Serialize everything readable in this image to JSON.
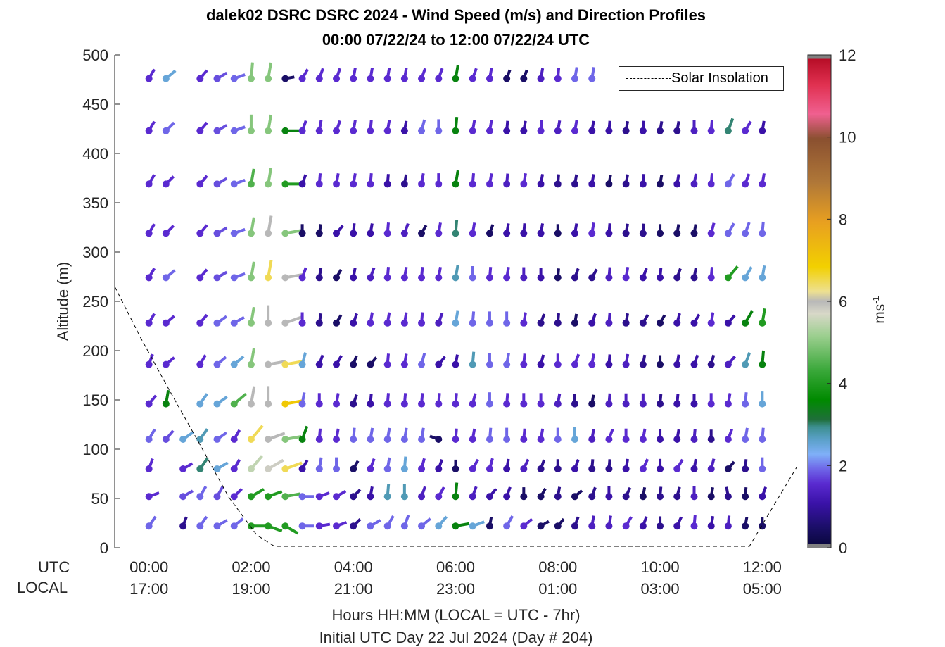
{
  "title_line1": "dalek02 DSRC DSRC 2024 - Wind Speed (m/s) and Direction Profiles",
  "title_line2": "00:00 07/22/24 to 12:00 07/22/24  UTC",
  "ylabel": "Altitude (m)",
  "xlabel": "Hours HH:MM  (LOCAL = UTC - 7hr)",
  "xlabel2": "Initial UTC Day 22  Jul 2024  (Day # 204)",
  "utc_label": "UTC",
  "local_label": "LOCAL",
  "colorbar": {
    "label_base": "ms",
    "label_exp": "-1",
    "ticks": [
      "0",
      "2",
      "4",
      "6",
      "8",
      "10",
      "12"
    ],
    "range": [
      0,
      12
    ]
  },
  "legend": {
    "entry": "Solar Insolation"
  },
  "chart_data": {
    "type": "wind-barb",
    "title": "dalek02 DSRC DSRC 2024 - Wind Speed (m/s) and Direction Profiles",
    "x_ticks_utc": [
      "00:00",
      "02:00",
      "04:00",
      "06:00",
      "08:00",
      "10:00",
      "12:00"
    ],
    "x_ticks_local": [
      "17:00",
      "19:00",
      "21:00",
      "23:00",
      "01:00",
      "03:00",
      "05:00"
    ],
    "xlim_hours": [
      -0.67,
      12.67
    ],
    "ylim": [
      0,
      500
    ],
    "y_ticks": [
      0,
      50,
      100,
      150,
      200,
      250,
      300,
      350,
      400,
      450,
      500
    ],
    "times_hours": [
      0,
      0.333,
      0.667,
      1,
      1.333,
      1.667,
      2,
      2.333,
      2.667,
      3,
      3.333,
      3.667,
      4,
      4.333,
      4.667,
      5,
      5.333,
      5.667,
      6,
      6.333,
      6.667,
      7,
      7.333,
      7.667,
      8,
      8.333,
      8.667,
      9,
      9.333,
      9.667,
      10,
      10.333,
      10.667,
      11,
      11.333,
      11.667,
      12
    ],
    "altitudes": [
      22,
      52,
      80,
      110,
      146,
      186,
      228,
      274,
      319,
      369,
      423,
      476
    ],
    "speed_grid": [
      [
        2,
        null,
        0.8,
        2,
        2,
        2,
        4,
        4,
        4,
        2,
        1.5,
        1.5,
        0.8,
        2,
        2,
        2,
        2,
        2.5,
        3.5,
        2.5,
        0.5,
        2,
        1.5,
        0.5,
        0.5,
        0.8,
        1.3,
        1.3,
        1.5,
        1,
        0.8,
        1,
        1.5,
        1,
        1.3,
        0.5,
        0.5
      ],
      [
        1.5,
        null,
        1.8,
        2,
        1.8,
        1.5,
        4,
        4,
        4.5,
        2,
        1.5,
        1.5,
        0.8,
        1,
        2.7,
        2.7,
        1.3,
        1.5,
        3.5,
        1.3,
        1,
        1,
        0.5,
        0.5,
        0.8,
        0.5,
        0.8,
        1,
        0.8,
        0.5,
        0.8,
        0.8,
        1.3,
        0.5,
        0.8,
        0.5,
        1
      ],
      [
        1.5,
        null,
        1.5,
        3,
        2.5,
        1.5,
        5.5,
        5.8,
        6.5,
        1,
        2,
        2,
        0.5,
        1.5,
        2,
        2.5,
        1.5,
        1,
        0.5,
        1.5,
        1.5,
        1,
        1.3,
        0.8,
        0.8,
        1,
        0.8,
        0.8,
        1,
        1.5,
        1,
        1.5,
        1,
        1.3,
        0.5,
        0.8,
        2
      ],
      [
        2,
        1.8,
        2.5,
        2.7,
        2,
        1.5,
        6.5,
        6,
        5,
        3.5,
        1.5,
        1.5,
        2,
        2,
        2,
        2,
        2,
        0.5,
        1.5,
        1.5,
        2,
        2,
        1.5,
        1.5,
        2,
        2.5,
        1.3,
        1.5,
        1.5,
        1.5,
        1,
        1,
        1.3,
        0.8,
        1.5,
        2,
        2
      ],
      [
        1.5,
        3.5,
        null,
        2.5,
        2.5,
        4.5,
        6,
        6,
        7,
        2,
        1.5,
        1.5,
        0.8,
        1,
        1.5,
        1.5,
        1.5,
        1.5,
        1.5,
        1.5,
        2,
        1.5,
        1.5,
        1.5,
        1.3,
        0.8,
        0.5,
        1.3,
        1.3,
        1.3,
        0.8,
        1,
        1,
        1.5,
        1.5,
        2,
        2.5
      ],
      [
        1.5,
        1.5,
        null,
        1.5,
        2,
        2.5,
        5,
        6,
        6.5,
        2.5,
        1,
        1,
        0.5,
        0.5,
        1.5,
        1.5,
        2,
        1,
        1,
        2.7,
        2,
        2,
        1.5,
        1,
        1.5,
        1.5,
        1.5,
        1,
        1.3,
        0.8,
        0.5,
        1,
        1,
        0.8,
        1.3,
        2.7,
        3.5
      ],
      [
        1.5,
        1.5,
        null,
        1.5,
        2,
        2,
        5,
        6,
        6,
        1.5,
        0.8,
        0.5,
        1,
        1.5,
        1.5,
        1.5,
        1.5,
        1.3,
        2.5,
        2,
        2,
        2,
        1.5,
        0.8,
        0.8,
        0.5,
        1,
        1.3,
        0.8,
        0.8,
        0.5,
        1,
        1,
        1.5,
        1,
        3.5,
        4
      ],
      [
        1.5,
        2,
        null,
        1.5,
        1.8,
        2,
        5,
        6.5,
        6,
        1.5,
        0.8,
        0.5,
        1,
        1.3,
        1.5,
        1.5,
        1.5,
        1.5,
        2.7,
        2,
        1.5,
        1.5,
        1.3,
        1,
        0.5,
        0.8,
        0.8,
        1.3,
        1.5,
        1,
        1,
        0.8,
        0.8,
        1.5,
        4,
        2.5,
        2.5
      ],
      [
        1.5,
        1.5,
        null,
        1.5,
        1.8,
        2,
        5,
        6,
        5,
        0.5,
        0.5,
        1,
        1,
        1,
        1.5,
        1.3,
        0.5,
        1.5,
        3,
        1.5,
        0.5,
        1,
        1,
        1,
        0.5,
        1,
        1.5,
        1,
        0.8,
        0.8,
        0.5,
        0.5,
        0.5,
        1.5,
        2,
        2,
        2
      ],
      [
        1.5,
        1.5,
        null,
        1.5,
        1.8,
        2,
        4.5,
        5,
        4,
        1,
        1.5,
        1.5,
        1.5,
        1.5,
        1,
        0.8,
        1.5,
        1.5,
        3.5,
        1.5,
        1.5,
        1.3,
        1.5,
        1,
        0.8,
        0.8,
        1,
        0.5,
        0.8,
        1,
        0.5,
        1,
        1.3,
        1.5,
        2,
        1.5,
        1.5
      ],
      [
        1.5,
        2,
        null,
        1.5,
        1.8,
        2,
        5,
        5,
        3.5,
        1.5,
        1.5,
        1.5,
        1.5,
        1.5,
        1.5,
        1,
        2,
        2,
        3.5,
        1.5,
        1.5,
        1,
        1,
        1.5,
        1.3,
        1.5,
        1,
        1,
        0.8,
        1,
        0.8,
        0.8,
        1.3,
        1.5,
        3,
        1.5,
        1
      ],
      [
        1.5,
        2.5,
        null,
        1.5,
        1.8,
        2,
        5,
        5,
        0.5,
        1.5,
        1.5,
        1.5,
        1.5,
        1.5,
        1.5,
        1.5,
        1.5,
        1.5,
        3.5,
        1.5,
        1.5,
        0.5,
        0.5,
        1.3,
        1.5,
        2,
        2,
        null,
        null,
        null,
        null,
        null,
        null,
        null,
        null,
        null,
        null
      ]
    ],
    "solar_insolation": "dashed line, value near zero from ~02:30 to ~11:40 UTC"
  }
}
